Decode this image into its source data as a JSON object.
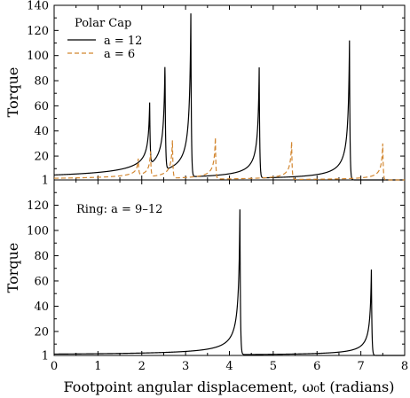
{
  "chart_data": [
    {
      "type": "line",
      "panel": "top",
      "ylabel": "Torque",
      "xlim": [
        0,
        8
      ],
      "ylim": [
        1,
        140
      ],
      "x_ticks": [
        0,
        1,
        2,
        3,
        4,
        5,
        6,
        7,
        8
      ],
      "y_ticks": [
        1,
        20,
        40,
        60,
        80,
        100,
        120,
        140
      ],
      "grid": false,
      "legend": {
        "title": "Polar Cap",
        "placement": "top-left",
        "entries": [
          "a = 12",
          "a = 6"
        ]
      },
      "series": [
        {
          "name": "a = 12",
          "color": "#000000",
          "style": "solid",
          "spikes": [
            {
              "x": 2.18,
              "peak": 50
            },
            {
              "x": 2.53,
              "peak": 88
            },
            {
              "x": 3.12,
              "peak": 131
            },
            {
              "x": 4.68,
              "peak": 89
            },
            {
              "x": 6.74,
              "peak": 112
            }
          ]
        },
        {
          "name": "a = 6",
          "color": "#d2862f",
          "style": "dashed",
          "spikes": [
            {
              "x": 1.92,
              "peak": 14
            },
            {
              "x": 2.2,
              "peak": 21
            },
            {
              "x": 2.7,
              "peak": 31
            },
            {
              "x": 3.68,
              "peak": 34
            },
            {
              "x": 5.42,
              "peak": 31
            },
            {
              "x": 7.5,
              "peak": 30
            }
          ]
        }
      ]
    },
    {
      "type": "line",
      "panel": "bottom",
      "ylabel": "Torque",
      "xlabel": "Footpoint angular displacement, ω₀t (radians)",
      "xlim": [
        0,
        8
      ],
      "ylim": [
        1,
        140
      ],
      "x_ticks": [
        0,
        1,
        2,
        3,
        4,
        5,
        6,
        7,
        8
      ],
      "y_ticks": [
        1,
        20,
        40,
        60,
        80,
        100,
        120
      ],
      "grid": false,
      "annotation": "Ring: a = 9–12",
      "series": [
        {
          "name": "Ring: a = 9–12",
          "color": "#000000",
          "style": "solid",
          "spikes": [
            {
              "x": 4.24,
              "peak": 116
            },
            {
              "x": 7.24,
              "peak": 69
            }
          ]
        }
      ]
    }
  ]
}
